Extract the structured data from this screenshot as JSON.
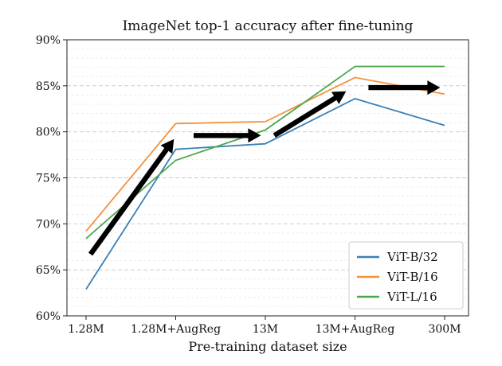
{
  "chart_data": {
    "type": "line",
    "title": "ImageNet top-1 accuracy after fine-tuning",
    "xlabel": "Pre-training dataset size",
    "ylabel": "",
    "categories": [
      "1.28M",
      "1.28M+AugReg",
      "13M",
      "13M+AugReg",
      "300M"
    ],
    "ylim": [
      60,
      90
    ],
    "y_ticks": [
      60,
      65,
      70,
      75,
      80,
      85,
      90
    ],
    "y_tick_labels": [
      "60%",
      "65%",
      "70%",
      "75%",
      "80%",
      "85%",
      "90%"
    ],
    "grid": "horizontal dashed, minor every 1%",
    "legend_position": "bottom-right",
    "series": [
      {
        "name": "ViT-B/32",
        "color": "#3a80b8",
        "values": [
          62.9,
          78.1,
          78.7,
          83.6,
          80.7
        ]
      },
      {
        "name": "ViT-B/16",
        "color": "#f3923d",
        "values": [
          69.2,
          80.9,
          81.1,
          85.9,
          84.1
        ]
      },
      {
        "name": "ViT-L/16",
        "color": "#4ca84c",
        "values": [
          68.4,
          76.9,
          80.2,
          87.1,
          87.1
        ]
      }
    ],
    "arrows": [
      {
        "from": [
          0.05,
          66.7
        ],
        "to": [
          0.98,
          79.2
        ]
      },
      {
        "from": [
          1.2,
          79.6
        ],
        "to": [
          1.95,
          79.6
        ]
      },
      {
        "from": [
          2.1,
          79.6
        ],
        "to": [
          2.9,
          84.4
        ]
      },
      {
        "from": [
          3.15,
          84.8
        ],
        "to": [
          3.95,
          84.8
        ]
      }
    ]
  }
}
